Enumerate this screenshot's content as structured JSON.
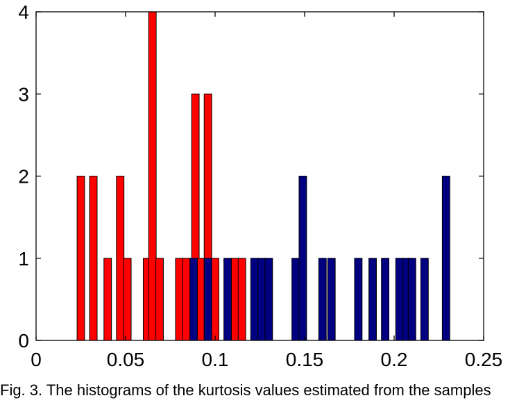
{
  "chart_data": {
    "type": "bar",
    "bin_width": 0.0042,
    "xlim": [
      0,
      0.25
    ],
    "ylim": [
      0,
      4
    ],
    "xticks": [
      "0",
      "0.05",
      "0.1",
      "0.15",
      "0.2",
      "0.25"
    ],
    "xtick_values": [
      0,
      0.05,
      0.1,
      0.15,
      0.2,
      0.25
    ],
    "yticks": [
      "0",
      "1",
      "2",
      "3",
      "4"
    ],
    "ytick_values": [
      0,
      1,
      2,
      3,
      4
    ],
    "grid": false,
    "series": [
      {
        "color": "#ff0000",
        "bins": [
          {
            "x": 0.025,
            "count": 2
          },
          {
            "x": 0.032,
            "count": 2
          },
          {
            "x": 0.04,
            "count": 1
          },
          {
            "x": 0.047,
            "count": 2
          },
          {
            "x": 0.051,
            "count": 1
          },
          {
            "x": 0.062,
            "count": 1
          },
          {
            "x": 0.065,
            "count": 4
          },
          {
            "x": 0.069,
            "count": 1
          },
          {
            "x": 0.08,
            "count": 1
          },
          {
            "x": 0.084,
            "count": 1
          },
          {
            "x": 0.089,
            "count": 3
          },
          {
            "x": 0.092,
            "count": 1
          },
          {
            "x": 0.096,
            "count": 3
          },
          {
            "x": 0.1,
            "count": 1
          },
          {
            "x": 0.111,
            "count": 1
          },
          {
            "x": 0.115,
            "count": 1
          }
        ]
      },
      {
        "color": "#000080",
        "bins": [
          {
            "x": 0.088,
            "count": 1
          },
          {
            "x": 0.096,
            "count": 1
          },
          {
            "x": 0.107,
            "count": 1
          },
          {
            "x": 0.122,
            "count": 1
          },
          {
            "x": 0.126,
            "count": 1
          },
          {
            "x": 0.13,
            "count": 1
          },
          {
            "x": 0.145,
            "count": 1
          },
          {
            "x": 0.149,
            "count": 2
          },
          {
            "x": 0.16,
            "count": 1
          },
          {
            "x": 0.165,
            "count": 1
          },
          {
            "x": 0.18,
            "count": 1
          },
          {
            "x": 0.188,
            "count": 1
          },
          {
            "x": 0.195,
            "count": 1
          },
          {
            "x": 0.203,
            "count": 1
          },
          {
            "x": 0.207,
            "count": 1
          },
          {
            "x": 0.21,
            "count": 1
          },
          {
            "x": 0.217,
            "count": 1
          },
          {
            "x": 0.229,
            "count": 2
          }
        ]
      }
    ]
  },
  "caption": "Fig. 3. The histograms of the kurtosis values estimated from the samples"
}
